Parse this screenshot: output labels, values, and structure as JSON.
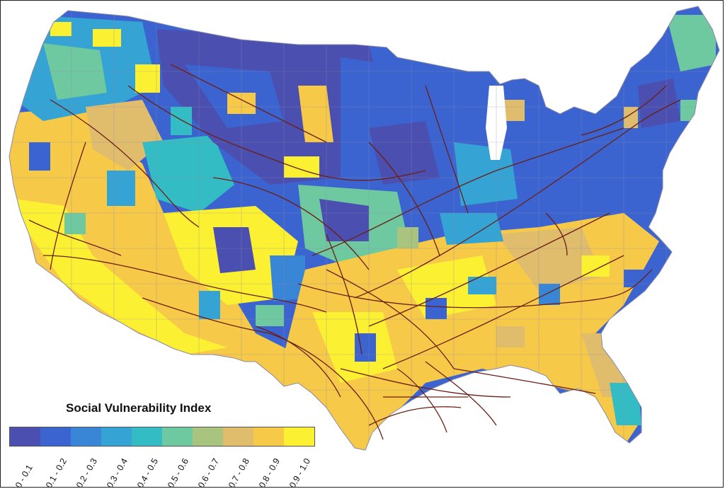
{
  "legend": {
    "title": "Social Vulnerability Index",
    "classes": [
      {
        "label": "0 - 0.1",
        "color": "#4b4fb0"
      },
      {
        "label": "0.1 - 0.2",
        "color": "#3b64d0"
      },
      {
        "label": "0.2 - 0.3",
        "color": "#3a86d6"
      },
      {
        "label": "0.3 - 0.4",
        "color": "#35a3d4"
      },
      {
        "label": "0.4 - 0.5",
        "color": "#34bcc4"
      },
      {
        "label": "0.5 - 0.6",
        "color": "#6ec8a0"
      },
      {
        "label": "0.6 - 0.7",
        "color": "#a8c47e"
      },
      {
        "label": "0.7 - 0.8",
        "color": "#dfbd6c"
      },
      {
        "label": "0.8 - 0.9",
        "color": "#f7c948"
      },
      {
        "label": "0.9 - 1.0",
        "color": "#fbf031"
      }
    ]
  },
  "overlay": {
    "name": "pipelines",
    "color": "#6b1f14"
  },
  "map": {
    "boundary_color": "#8a8aa8"
  }
}
